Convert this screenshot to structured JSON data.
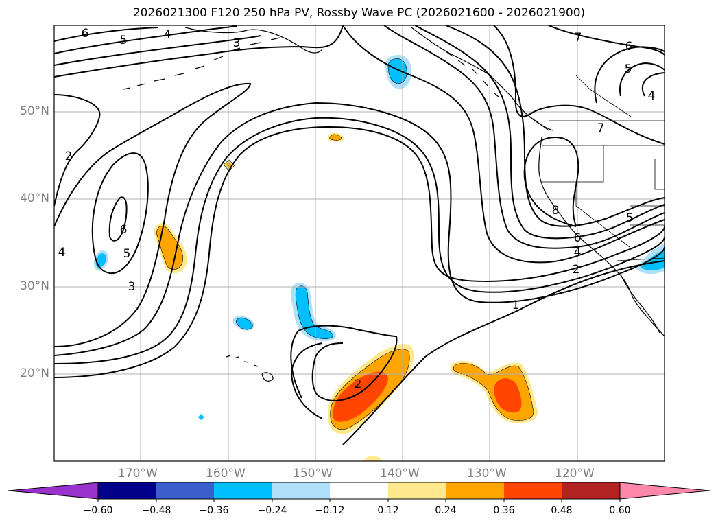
{
  "title": "2026021300 F120 250 hPa PV, Rossby Wave PC (2026021600 - 2026021900)",
  "lat_labels": [
    "50°N",
    "40°N",
    "30°N",
    "20°N"
  ],
  "lon_labels": [
    "170°W",
    "160°W",
    "150°W",
    "140°W",
    "130°W",
    "120°W"
  ],
  "colorbar": {
    "tick_labels": [
      "−0.60",
      "−0.48",
      "−0.36",
      "−0.24",
      "−0.12",
      "0.12",
      "0.24",
      "0.36",
      "0.48",
      "0.60"
    ],
    "colors": [
      "#9932cc",
      "#00008b",
      "#3a5fcd",
      "#00bfff",
      "#afe0fa",
      "#ffffff",
      "#ffe98c",
      "#ffa500",
      "#ff4500",
      "#b22222",
      "#ff88aa"
    ]
  },
  "contour_labels": [
    "6",
    "5",
    "4",
    "3",
    "7",
    "6",
    "5",
    "4",
    "2",
    "6",
    "5",
    "4",
    "3",
    "8",
    "6",
    "4",
    "2",
    "5",
    "1",
    "7",
    "2"
  ]
}
